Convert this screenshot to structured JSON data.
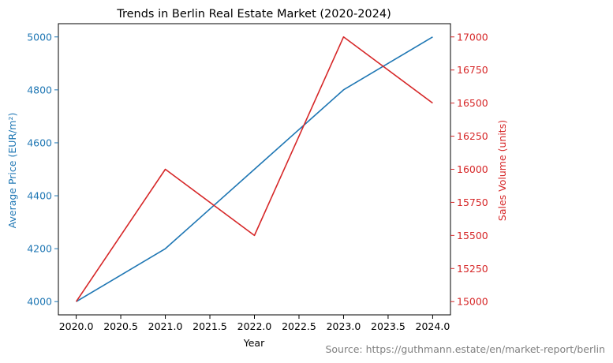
{
  "chart_data": {
    "type": "line",
    "title": "Trends in Berlin Real Estate Market (2020-2024)",
    "xlabel": "Year",
    "x": [
      2020,
      2021,
      2022,
      2023,
      2024
    ],
    "xlim": [
      2019.8,
      2024.2
    ],
    "xticks": [
      2020.0,
      2020.5,
      2021.0,
      2021.5,
      2022.0,
      2022.5,
      2023.0,
      2023.5,
      2024.0
    ],
    "xtick_labels": [
      "2020.0",
      "2020.5",
      "2021.0",
      "2021.5",
      "2022.0",
      "2022.5",
      "2023.0",
      "2023.5",
      "2024.0"
    ],
    "grid": false,
    "series": [
      {
        "axis": "left",
        "color": "#1f77b4",
        "values": [
          4000,
          4200,
          4500,
          4800,
          5000
        ]
      },
      {
        "axis": "right",
        "color": "#d62728",
        "values": [
          15000,
          16000,
          15500,
          17000,
          16500
        ]
      }
    ],
    "left_axis": {
      "label": "Average Price (EUR/m²)",
      "color": "#1f77b4",
      "ylim": [
        3950,
        5050
      ],
      "ticks": [
        4000,
        4200,
        4400,
        4600,
        4800,
        5000
      ],
      "tick_labels": [
        "4000",
        "4200",
        "4400",
        "4600",
        "4800",
        "5000"
      ]
    },
    "right_axis": {
      "label": "Sales Volume (units)",
      "color": "#d62728",
      "ylim": [
        14900,
        17100
      ],
      "ticks": [
        15000,
        15250,
        15500,
        15750,
        16000,
        16250,
        16500,
        16750,
        17000
      ],
      "tick_labels": [
        "15000",
        "15250",
        "15500",
        "15750",
        "16000",
        "16250",
        "16500",
        "16750",
        "17000"
      ]
    },
    "source_note": "Source: https://guthmann.estate/en/market-report/berlin"
  }
}
